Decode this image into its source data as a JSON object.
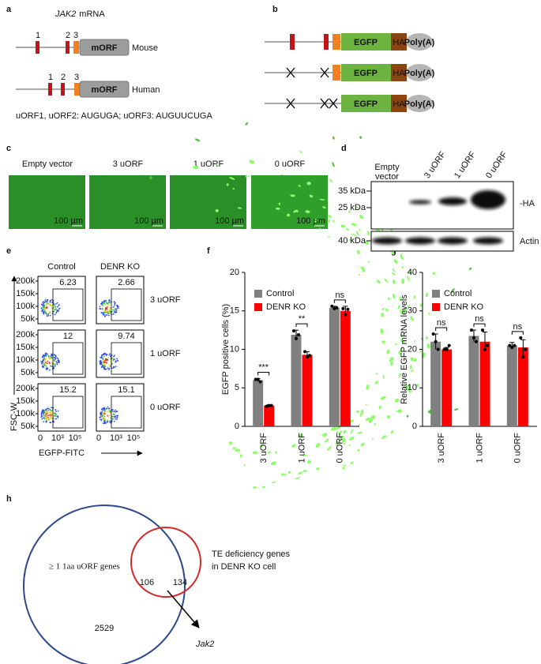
{
  "panel_letters": [
    "a",
    "b",
    "c",
    "d",
    "e",
    "f",
    "g",
    "h"
  ],
  "panel_a": {
    "gene": "JAK2",
    "gene_suffix": "mRNA",
    "orf": "mORF",
    "mouse": "Mouse",
    "human": "Human",
    "uorf_numbers": [
      "1",
      "2",
      "3"
    ],
    "note": "uORF1, uORF2: AUGUGA;  uORF3: AUGUUCUGA"
  },
  "panel_b": {
    "egfp": "EGFP",
    "ha": "HA",
    "polya": "Poly(A)"
  },
  "panel_c": {
    "labels": [
      "Empty vector",
      "3 uORF",
      "1 uORF",
      "0 uORF"
    ],
    "scale": "100 µm"
  },
  "panel_d": {
    "empty_lane": [
      "Empty",
      "vector"
    ],
    "lanes": [
      "3 uORF",
      "1 uORF",
      "0 uORF"
    ],
    "markers": [
      "35 kDa",
      "25 kDa",
      "40 kDa"
    ],
    "bands": [
      "-HA",
      "Actin"
    ]
  },
  "panel_e": {
    "columns": [
      "Control",
      "DENR KO"
    ],
    "rows": [
      "3 uORF",
      "1 uORF",
      "0 uORF"
    ],
    "percentages": [
      [
        "6.23",
        "2.66"
      ],
      [
        "12",
        "9.74"
      ],
      [
        "15.2",
        "15.1"
      ]
    ],
    "y_ticks": [
      "200k",
      "150k",
      "100k",
      "50k"
    ],
    "x_ticks": [
      "0",
      "10³",
      "10⁵"
    ],
    "y_label": "FSC-W",
    "x_label": "EGFP-FITC"
  },
  "chart_data": [
    {
      "type": "bar",
      "y_label": "EGFP positive cells (%)",
      "categories": [
        "3 uORF",
        "1 uORF",
        "0 uORF"
      ],
      "series": [
        {
          "name": "Control",
          "color": "#808080",
          "values": [
            6.0,
            11.9,
            15.4
          ],
          "errors": [
            0.2,
            0.6,
            0.2
          ],
          "points": [
            [
              6.1,
              6.1,
              5.8
            ],
            [
              12.4,
              11.4,
              11.9
            ],
            [
              15.6,
              15.3,
              15.4
            ]
          ]
        },
        {
          "name": "DENR KO",
          "color": "#ff0000",
          "values": [
            2.7,
            9.3,
            15.0
          ],
          "errors": [
            0.1,
            0.4,
            0.6
          ],
          "points": [
            [
              2.6,
              2.7,
              2.7
            ],
            [
              9.7,
              9.0,
              9.2
            ],
            [
              15.3,
              14.5,
              15.2
            ]
          ]
        }
      ],
      "significance": [
        "***",
        "**",
        "ns"
      ],
      "ylim": [
        0,
        20
      ],
      "yticks": [
        0,
        5,
        10,
        15,
        20
      ],
      "legend": "top-left"
    },
    {
      "type": "bar",
      "y_label": "Relative EGFP mRNA levels",
      "categories": [
        "3 uORF",
        "1 uORF",
        "0 uORF"
      ],
      "series": [
        {
          "name": "Control",
          "color": "#808080",
          "values": [
            22,
            23.5,
            21
          ],
          "errors": [
            2,
            1.5,
            0.8
          ],
          "points": [
            [
              24,
              22,
              20
            ],
            [
              25,
              23,
              22
            ],
            [
              21,
              20.5,
              21
            ]
          ]
        },
        {
          "name": "DENR KO",
          "color": "#ff0000",
          "values": [
            20,
            22,
            20.5
          ],
          "errors": [
            0.5,
            2.5,
            2
          ],
          "points": [
            [
              20,
              20,
              21
            ],
            [
              25,
              20,
              21
            ],
            [
              23,
              18,
              20
            ]
          ]
        }
      ],
      "significance": [
        "ns",
        "ns",
        "ns"
      ],
      "ylim": [
        0,
        40
      ],
      "yticks": [
        0,
        10,
        20,
        30,
        40
      ],
      "legend": "top-left"
    }
  ],
  "panel_h": {
    "uorf_set": "≥ 1 1aa uORF genes",
    "te_set": [
      "TE deficiency genes",
      "in DENR KO cell"
    ],
    "only_uorf": "2529",
    "overlap": "106",
    "only_te": "134",
    "highlight": "Jak2"
  }
}
